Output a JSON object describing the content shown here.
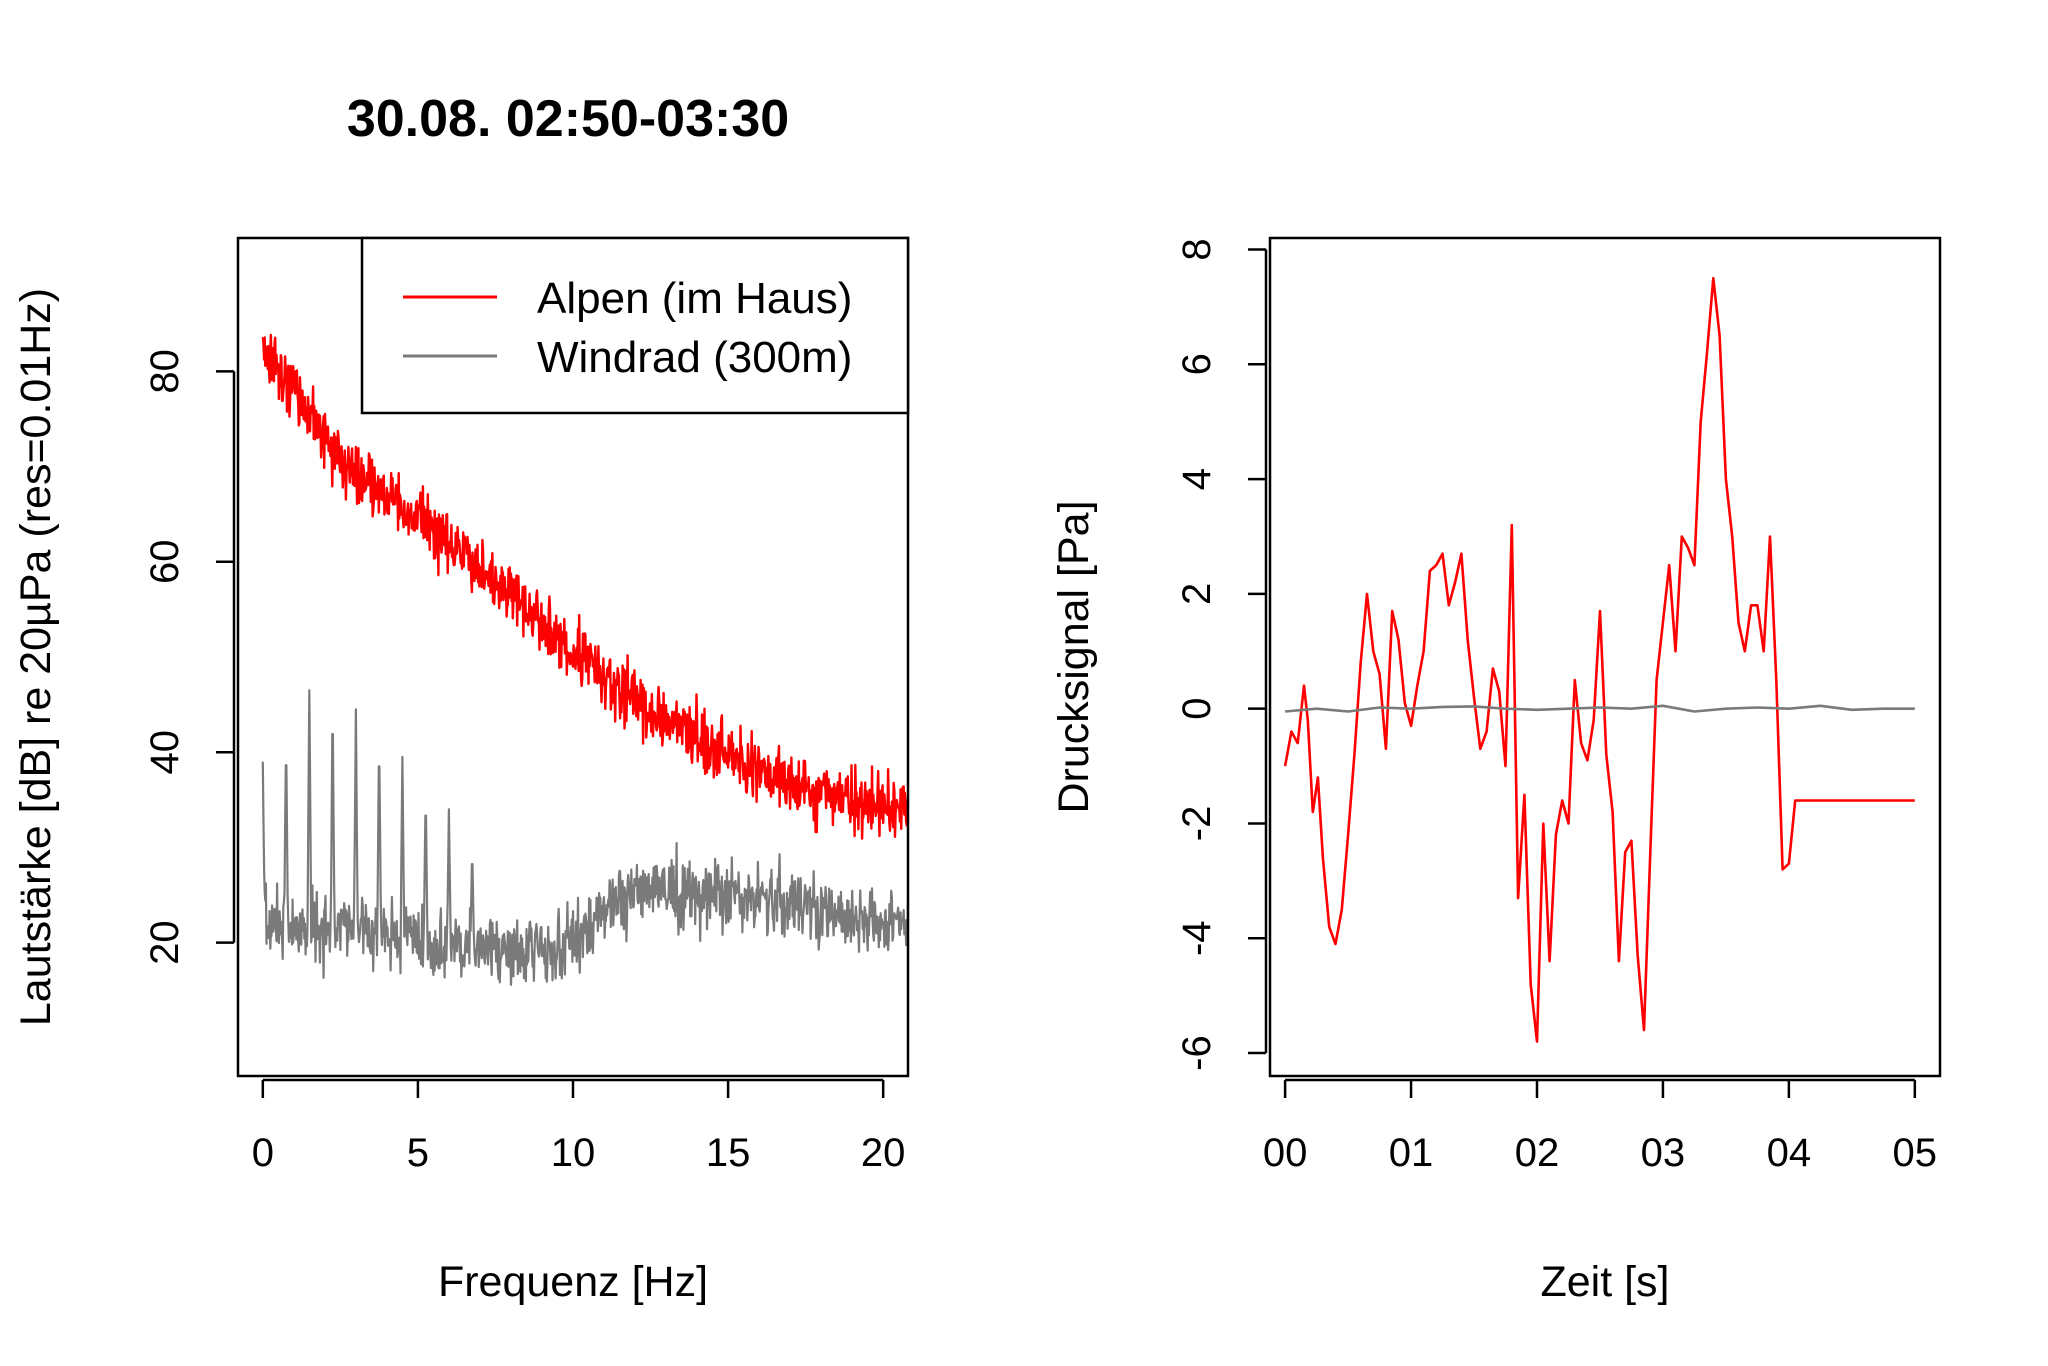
{
  "figure": {
    "title": "30.08. 02:50-03:30",
    "series_colors": {
      "alpen": "#ff0000",
      "windrad": "#7a7a7a"
    }
  },
  "chart_data": [
    {
      "type": "line",
      "xlabel": "Frequenz [Hz]",
      "ylabel": "Lautstärke [dB] re 20µPa (res=0.01Hz)",
      "xlim": [
        -0.8,
        20.8
      ],
      "ylim": [
        6,
        94
      ],
      "xticks": [
        0,
        5,
        10,
        15,
        20
      ],
      "xtick_labels": [
        "0",
        "5",
        "10",
        "15",
        "20"
      ],
      "yticks": [
        20,
        40,
        60,
        80
      ],
      "ytick_labels": [
        "20",
        "40",
        "60",
        "80"
      ],
      "legend": {
        "position": "top-right",
        "entries": [
          "Alpen (im Haus)",
          "Windrad (300m)"
        ]
      },
      "series": [
        {
          "name": "Alpen (im Haus)",
          "color": "#ff0000",
          "trend": {
            "x": [
              0,
              1,
              2,
              3,
              4,
              5,
              6,
              7,
              8,
              9,
              10,
              11,
              12,
              13,
              14,
              15,
              16,
              17,
              18,
              19,
              20,
              20.8
            ],
            "y": [
              82,
              78,
              73,
              69.5,
              67,
              64.5,
              62,
              59.5,
              56.5,
              53.5,
              50.5,
              48,
              45.5,
              43,
              41.5,
              39.5,
              38,
              36.5,
              35.5,
              35,
              34.5,
              34.5
            ]
          },
          "noise_db": 1.6
        },
        {
          "name": "Windrad (300m)",
          "color": "#7a7a7a",
          "trend": {
            "x": [
              0,
              2,
              4,
              6,
              7,
              8,
              9,
              10,
              11,
              12,
              13,
              14,
              15,
              16,
              17,
              18,
              19,
              20,
              20.8
            ],
            "y": [
              22,
              21.5,
              21,
              19.5,
              19.5,
              19,
              19,
              20,
              23,
              25,
              25.5,
              25,
              25,
              24.5,
              24,
              23.5,
              22.5,
              22,
              21.5
            ]
          },
          "noise_db": 1.8,
          "peaks": [
            {
              "x": 0.0,
              "y": 39
            },
            {
              "x": 0.75,
              "y": 42
            },
            {
              "x": 1.5,
              "y": 46.5
            },
            {
              "x": 2.25,
              "y": 46
            },
            {
              "x": 3.0,
              "y": 44.5
            },
            {
              "x": 3.75,
              "y": 42
            },
            {
              "x": 4.5,
              "y": 39.5
            },
            {
              "x": 5.25,
              "y": 36
            },
            {
              "x": 6.0,
              "y": 34
            },
            {
              "x": 6.75,
              "y": 30
            }
          ]
        }
      ]
    },
    {
      "type": "line",
      "xlabel": "Zeit [s]",
      "ylabel": "Drucksignal [Pa]",
      "xlim": [
        -0.12,
        5.2
      ],
      "ylim": [
        -6.4,
        8.2
      ],
      "xticks": [
        0,
        1,
        2,
        3,
        4,
        5
      ],
      "xtick_labels": [
        "00",
        "01",
        "02",
        "03",
        "04",
        "05"
      ],
      "yticks": [
        -6,
        -4,
        -2,
        0,
        2,
        4,
        6,
        8
      ],
      "ytick_labels": [
        "-6",
        "-4",
        "-2",
        "0",
        "2",
        "4",
        "6",
        "8"
      ],
      "series": [
        {
          "name": "Alpen (im Haus)",
          "color": "#ff0000",
          "x": [
            0.0,
            0.05,
            0.1,
            0.15,
            0.18,
            0.22,
            0.26,
            0.3,
            0.35,
            0.4,
            0.45,
            0.5,
            0.55,
            0.6,
            0.65,
            0.7,
            0.75,
            0.8,
            0.85,
            0.9,
            0.95,
            1.0,
            1.05,
            1.1,
            1.15,
            1.2,
            1.25,
            1.3,
            1.35,
            1.4,
            1.45,
            1.5,
            1.55,
            1.6,
            1.65,
            1.7,
            1.75,
            1.8,
            1.85,
            1.9,
            1.95,
            2.0,
            2.05,
            2.1,
            2.15,
            2.2,
            2.25,
            2.3,
            2.35,
            2.4,
            2.45,
            2.5,
            2.55,
            2.6,
            2.65,
            2.7,
            2.75,
            2.8,
            2.85,
            2.9,
            2.95,
            3.0,
            3.05,
            3.1,
            3.15,
            3.2,
            3.25,
            3.3,
            3.35,
            3.4,
            3.45,
            3.5,
            3.55,
            3.6,
            3.65,
            3.7,
            3.75,
            3.8,
            3.85,
            3.9,
            3.95,
            4.0,
            4.05,
            4.1,
            4.15,
            4.2,
            4.25,
            4.3,
            4.35,
            4.4,
            4.45,
            4.5,
            4.55,
            4.6,
            4.65,
            4.7,
            4.75,
            4.8,
            4.85,
            4.9,
            4.95,
            5.0
          ],
          "y": [
            -1.0,
            -0.4,
            -0.6,
            0.4,
            -0.2,
            -1.8,
            -1.2,
            -2.6,
            -3.8,
            -4.1,
            -3.5,
            -2.2,
            -0.8,
            0.8,
            2.0,
            1.0,
            0.6,
            -0.7,
            1.7,
            1.2,
            0.1,
            -0.3,
            0.4,
            1.0,
            2.4,
            2.5,
            2.7,
            1.8,
            2.2,
            2.7,
            1.2,
            0.2,
            -0.7,
            -0.4,
            0.7,
            0.3,
            -1.0,
            3.2,
            -3.3,
            -1.5,
            -4.8,
            -5.8,
            -2.0,
            -4.4,
            -2.2,
            -1.6,
            -2.0,
            0.5,
            -0.6,
            -0.9,
            -0.2,
            1.7,
            -0.8,
            -1.8,
            -4.4,
            -2.5,
            -2.3,
            -4.3,
            -5.6,
            -2.5,
            0.5,
            1.5,
            2.5,
            1.0,
            3.0,
            2.8,
            2.5,
            5.0,
            6.2,
            7.5,
            6.5,
            4.0,
            3.0,
            1.5,
            1.0,
            1.8,
            1.8,
            1.0,
            3.0,
            0.5,
            -2.8,
            -2.7,
            -1.6,
            -1.6,
            -1.6,
            -1.6,
            -1.6,
            -1.6,
            -1.6,
            -1.6,
            -1.6,
            -1.6,
            -1.6,
            -1.6,
            -1.6,
            -1.6,
            -1.6,
            -1.6,
            -1.6,
            -1.6,
            -1.6,
            -1.6
          ]
        },
        {
          "name": "Windrad (300m)",
          "color": "#7a7a7a",
          "x": [
            0.0,
            0.25,
            0.5,
            0.75,
            1.0,
            1.25,
            1.5,
            1.75,
            2.0,
            2.25,
            2.5,
            2.75,
            3.0,
            3.25,
            3.5,
            3.75,
            4.0,
            4.25,
            4.5,
            4.75,
            5.0
          ],
          "y": [
            -0.05,
            0.0,
            -0.05,
            0.02,
            0.0,
            0.03,
            0.04,
            0.0,
            -0.02,
            0.0,
            0.02,
            0.0,
            0.05,
            -0.05,
            0.0,
            0.02,
            0.0,
            0.05,
            -0.02,
            0.0,
            0.0
          ]
        }
      ]
    }
  ]
}
